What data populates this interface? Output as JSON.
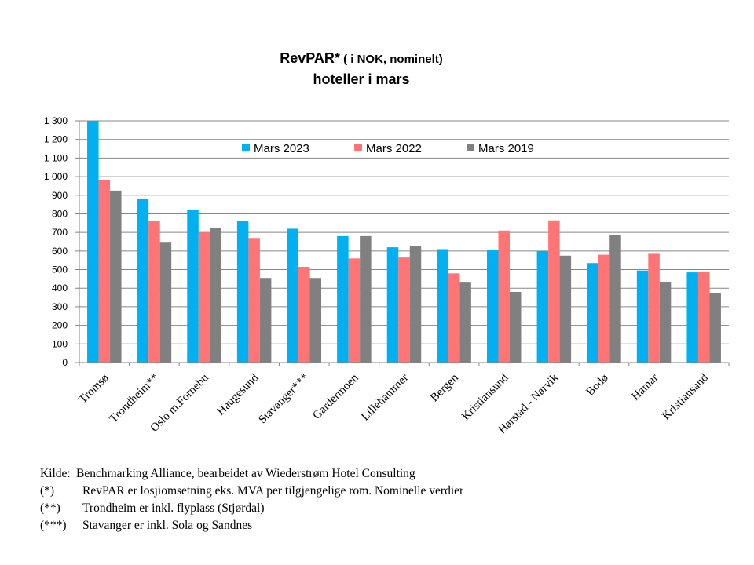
{
  "chart_data": {
    "type": "bar",
    "title_bold": "RevPAR*",
    "title_rest": " ( i NOK, nominelt)",
    "subtitle": "hoteller i mars",
    "categories": [
      "Tromsø",
      "Trondheim**",
      "Oslo m.Fornebu",
      "Haugesund",
      "Stavanger***",
      "Gardermoen",
      "Lillehammer",
      "Bergen",
      "Kristiansund",
      "Harstad - Narvik",
      "Bodø",
      "Hamar",
      "Kristiansand"
    ],
    "series": [
      {
        "name": "Mars 2023",
        "color": "#00b0f0",
        "values": [
          1300,
          880,
          820,
          760,
          720,
          680,
          620,
          610,
          605,
          600,
          535,
          495,
          485
        ]
      },
      {
        "name": "Mars 2022",
        "color": "#ff7575",
        "values": [
          980,
          760,
          700,
          670,
          515,
          560,
          565,
          480,
          710,
          765,
          580,
          585,
          490
        ]
      },
      {
        "name": "Mars 2019",
        "color": "#808080",
        "values": [
          925,
          645,
          725,
          455,
          455,
          680,
          625,
          430,
          380,
          575,
          685,
          435,
          375
        ]
      }
    ],
    "ylim": [
      0,
      1300
    ],
    "yticks": [
      0,
      100,
      200,
      300,
      400,
      500,
      600,
      700,
      800,
      900,
      1000,
      1100,
      1200,
      1300
    ],
    "ytick_labels": [
      "0",
      "100",
      "200",
      "300",
      "400",
      "500",
      "600",
      "700",
      "800",
      "900",
      "1 000",
      "1 100",
      "1 200",
      "1 300"
    ],
    "grid": true,
    "legend_position": "top"
  },
  "notes": [
    {
      "key": "Kilde:",
      "text": "Benchmarking  Alliance,  bearbeidet av Wiederstrøm Hotel Consulting"
    },
    {
      "key": "(*)",
      "text": "RevPAR er losjiomsetning  eks. MVA per tilgjengelige  rom. Nominelle verdier"
    },
    {
      "key": "(**)",
      "text": "Trondheim er inkl. flyplass (Stjørdal)"
    },
    {
      "key": "(***)",
      "text": "Stavanger er inkl. Sola og Sandnes"
    }
  ]
}
